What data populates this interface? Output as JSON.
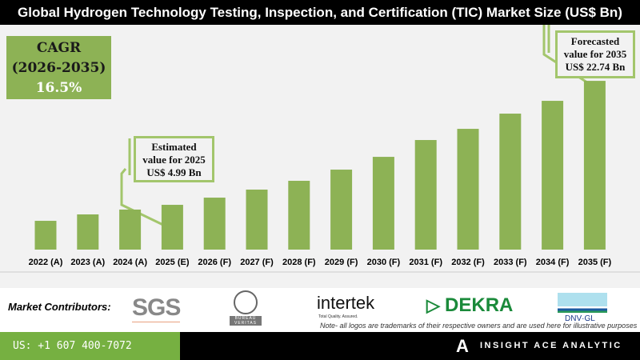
{
  "title": "Global Hydrogen Technology Testing, Inspection, and Certification (TIC) Market Size (US$ Bn)",
  "cagr": {
    "label": "CAGR",
    "period": "(2026-2035)",
    "value": "16.5%"
  },
  "callouts": {
    "estimated": [
      "Estimated",
      "value for 2025",
      "US$ 4.99 Bn"
    ],
    "forecast": [
      "Forecasted",
      "value for 2035",
      "US$ 22.74 Bn"
    ]
  },
  "chart_data": {
    "type": "bar",
    "title": "Global Hydrogen Technology Testing, Inspection, and Certification (TIC) Market Size (US$ Bn)",
    "categories": [
      "2022 (A)",
      "2023 (A)",
      "2024 (A)",
      "2025 (E)",
      "2026 (F)",
      "2027 (F)",
      "2028 (F)",
      "2029 (F)",
      "2030 (F)",
      "2031 (F)",
      "2032 (F)",
      "2033 (F)",
      "2034 (F)",
      "2035 (F)"
    ],
    "values": [
      2.7,
      3.62,
      4.31,
      4.99,
      6.02,
      7.17,
      8.43,
      10.03,
      11.86,
      14.27,
      15.87,
      18.05,
      19.88,
      22.74
    ],
    "ylim": [
      -1.42,
      25
    ],
    "grid": false,
    "color": "#8db255"
  },
  "footer": {
    "contributors_label": "Market Contributors:",
    "logos": {
      "sgs": "SGS",
      "bv": "BUREAU VERITAS",
      "intertek": "intertek",
      "intertek_tag": "Total Quality. Assured.",
      "dekra": "DEKRA",
      "dnv": "DNV·GL"
    },
    "note": "Note- all logos are trademarks of their respective owners and are used here for illustrative purposes",
    "phone": "US: +1 607 400-7072",
    "brand": "INSIGHT ACE ANALYTIC"
  },
  "colors": {
    "accent": "#76b041",
    "bar": "#8db255"
  }
}
